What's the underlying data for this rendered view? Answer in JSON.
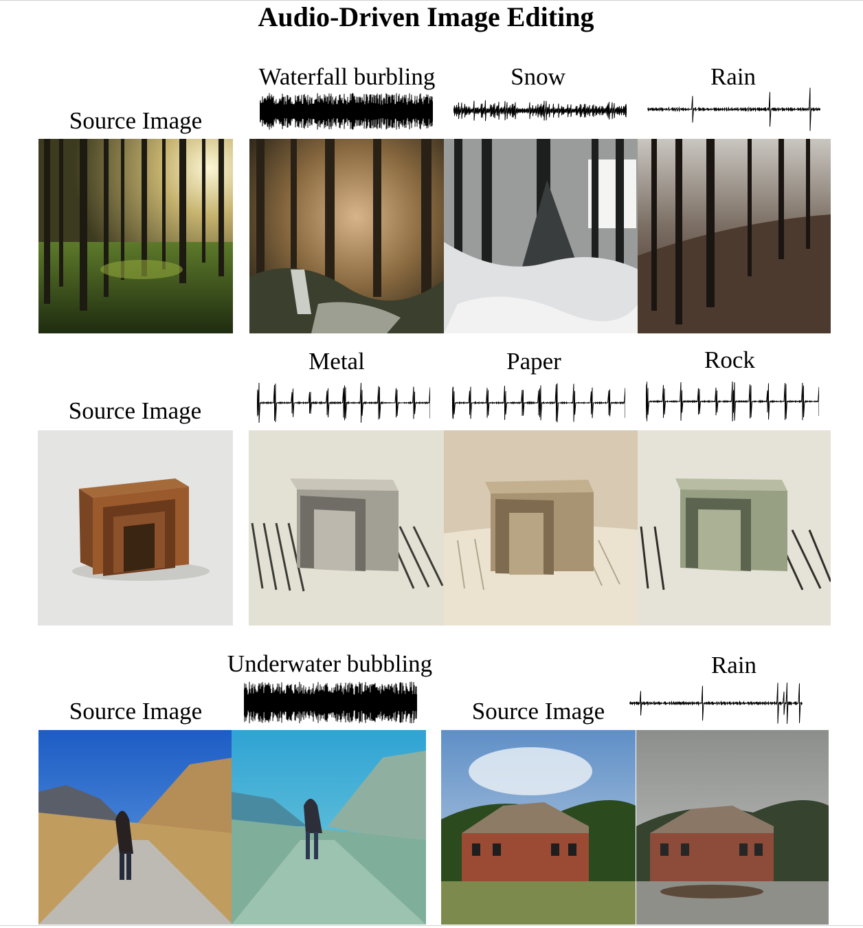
{
  "figure": {
    "title": "Audio-Driven Image Editing"
  },
  "rows": [
    {
      "source_label": "Source Image",
      "source_image": "forest-sunlit-photo",
      "edits": [
        {
          "label": "Waterfall burbling",
          "waveform": "dense-continuous",
          "image": "forest-waterfall-photo"
        },
        {
          "label": "Snow",
          "waveform": "medium-continuous",
          "image": "forest-snow-photo"
        },
        {
          "label": "Rain",
          "waveform": "sparse-spiky",
          "image": "forest-rain-photo"
        }
      ]
    },
    {
      "source_label": "Source Image",
      "source_image": "wooden-nesting-tables-photo",
      "edits": [
        {
          "label": "Metal",
          "waveform": "impulse-bursts",
          "image": "metal-tables-photo"
        },
        {
          "label": "Paper",
          "waveform": "impulse-bursts",
          "image": "paper-tables-photo"
        },
        {
          "label": "Rock",
          "waveform": "impulse-bursts",
          "image": "rock-tables-photo"
        }
      ]
    },
    {
      "groups": [
        {
          "source_label": "Source Image",
          "source_image": "hiker-mountain-road-photo",
          "edit": {
            "label": "Underwater bubbling",
            "waveform": "dense-continuous",
            "image": "hiker-underwater-photo"
          }
        },
        {
          "source_label": "Source Image",
          "source_image": "brick-house-photo",
          "edit": {
            "label": "Rain",
            "waveform": "sparse-spiky",
            "image": "brick-house-rain-photo"
          }
        }
      ]
    }
  ]
}
